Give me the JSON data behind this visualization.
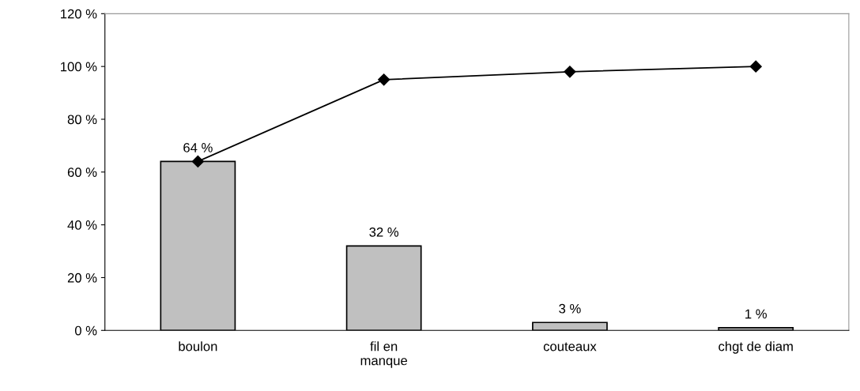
{
  "chart_data": {
    "type": "bar",
    "categories": [
      "boulon",
      "fil en\nmanque",
      "couteaux",
      "chgt de diam"
    ],
    "series": [
      {
        "color": "#c0c0c0",
        "values": [
          64,
          32,
          3,
          1
        ],
        "value_labels": [
          "64 %",
          "32 %",
          "3 %",
          "1 %"
        ]
      },
      {
        "type": "line",
        "color": "#000000",
        "values": [
          64,
          95,
          98,
          100
        ],
        "marker": "diamond"
      }
    ],
    "ylim": [
      0,
      120
    ],
    "yticks": [
      {
        "value": 0,
        "label": "0 %"
      },
      {
        "value": 20,
        "label": "20 %"
      },
      {
        "value": 40,
        "label": "40 %"
      },
      {
        "value": 60,
        "label": "60 %"
      },
      {
        "value": 80,
        "label": "80 %"
      },
      {
        "value": 100,
        "label": "100 %"
      },
      {
        "value": 120,
        "label": "120 %"
      }
    ],
    "grid": false,
    "legend": false
  }
}
